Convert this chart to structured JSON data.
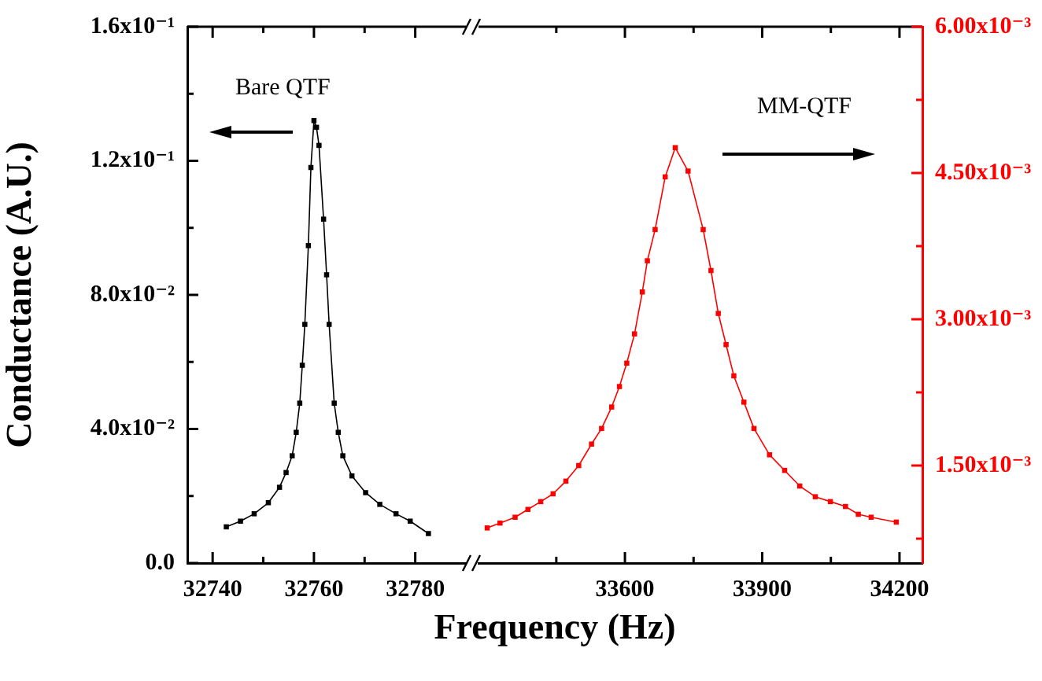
{
  "chart_data": [
    {
      "type": "line",
      "xlabel": "Frequency (Hz)",
      "ylabel": "Conductance (A.U.)",
      "marker": "square",
      "xlim": [
        32735,
        32790
      ],
      "xticks": [
        32740,
        {
          "value": 32750,
          "label": null
        },
        32760,
        {
          "value": 32770,
          "label": null
        },
        32780
      ],
      "ylim": [
        0,
        0.16
      ],
      "yticks": [
        {
          "value": 0,
          "label": "0.0"
        },
        {
          "value": 0.02,
          "label": null
        },
        {
          "value": 0.04,
          "label": "4.0x10⁻²"
        },
        {
          "value": 0.06,
          "label": null
        },
        {
          "value": 0.08,
          "label": "8.0x10⁻²"
        },
        {
          "value": 0.1,
          "label": null
        },
        {
          "value": 0.12,
          "label": "1.2x10⁻¹"
        },
        {
          "value": 0.14,
          "label": null
        },
        {
          "value": 0.16,
          "label": "1.6x10⁻¹"
        }
      ],
      "series": [
        {
          "name": "Bare QTF",
          "color": "#000000",
          "x": [
            32742.7,
            32745.5,
            32748.2,
            32751,
            32753.2,
            32754.5,
            32755.7,
            32756.5,
            32757.2,
            32757.7,
            32758.2,
            32758.9,
            32759.4,
            32760,
            32760.5,
            32761,
            32761.9,
            32762.5,
            32763,
            32764,
            32764.8,
            32765.7,
            32767.5,
            32770.2,
            32773,
            32776.2,
            32779,
            32782.6
          ],
          "values": [
            0.0108,
            0.0125,
            0.0147,
            0.018,
            0.0226,
            0.027,
            0.032,
            0.039,
            0.0477,
            0.059,
            0.0712,
            0.0947,
            0.118,
            0.132,
            0.13,
            0.1246,
            0.1026,
            0.086,
            0.0712,
            0.0477,
            0.039,
            0.032,
            0.026,
            0.021,
            0.0175,
            0.0147,
            0.0125,
            0.0088
          ]
        }
      ]
    },
    {
      "type": "line",
      "marker": "square",
      "xlim": [
        33280,
        34250
      ],
      "xticks": [
        {
          "value": 33450,
          "label": null
        },
        33600,
        {
          "value": 33750,
          "label": null
        },
        33900,
        {
          "value": 34050,
          "label": null
        },
        34200
      ],
      "y2lim": [
        0.0005,
        0.006
      ],
      "y2ticks": [
        {
          "value": 0.00075,
          "label": null
        },
        {
          "value": 0.0015,
          "label": "1.50x10⁻³"
        },
        {
          "value": 0.00225,
          "label": null
        },
        {
          "value": 0.003,
          "label": "3.00x10⁻³"
        },
        {
          "value": 0.00375,
          "label": null
        },
        {
          "value": 0.0045,
          "label": "4.50x10⁻³"
        },
        {
          "value": 0.00525,
          "label": null
        },
        {
          "value": 0.006,
          "label": "6.00x10⁻³"
        }
      ],
      "series": [
        {
          "name": "MM-QTF",
          "color": "#ff0000",
          "axis": "y2",
          "x": [
            33299,
            33327,
            33360,
            33388,
            33416,
            33443,
            33471,
            33499,
            33527,
            33549,
            33571,
            33588,
            33604,
            33621,
            33638,
            33649,
            33666,
            33688,
            33710,
            33738,
            33771,
            33788,
            33804,
            33821,
            33838,
            33860,
            33882,
            33916,
            33949,
            33982,
            34016,
            34049,
            34082,
            34110,
            34138,
            34193
          ],
          "values": [
            0.00086,
            0.00091,
            0.00097,
            0.00105,
            0.00113,
            0.00121,
            0.00134,
            0.0015,
            0.00172,
            0.00188,
            0.0021,
            0.00231,
            0.00255,
            0.00285,
            0.00328,
            0.0036,
            0.00392,
            0.00446,
            0.00476,
            0.00452,
            0.00392,
            0.0035,
            0.00306,
            0.00274,
            0.00242,
            0.00215,
            0.00188,
            0.00161,
            0.00145,
            0.00129,
            0.00118,
            0.00113,
            0.00108,
            0.001,
            0.00097,
            0.00092
          ]
        }
      ]
    }
  ]
}
